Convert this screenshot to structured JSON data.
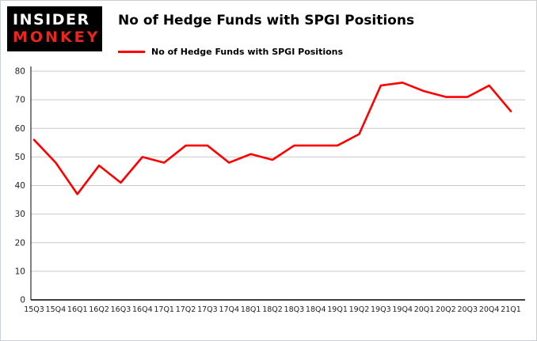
{
  "logo": {
    "line1": "INSIDER",
    "line2": "MONKEY",
    "bg_color": "#000000",
    "insider_color": "#ffffff",
    "monkey_color": "#e8251f"
  },
  "title": "No of Hedge Funds with SPGI Positions",
  "legend": {
    "label": "No of Hedge Funds with SPGI Positions",
    "color": "#ff0000"
  },
  "chart_data": {
    "type": "line",
    "title": "No of Hedge Funds with SPGI Positions",
    "categories": [
      "15Q3",
      "15Q4",
      "16Q1",
      "16Q2",
      "16Q3",
      "16Q4",
      "17Q1",
      "17Q2",
      "17Q3",
      "17Q4",
      "18Q1",
      "18Q2",
      "18Q3",
      "18Q4",
      "19Q1",
      "19Q2",
      "19Q3",
      "19Q4",
      "20Q1",
      "20Q2",
      "20Q3",
      "20Q4",
      "21Q1"
    ],
    "values": [
      56,
      48,
      37,
      47,
      41,
      50,
      48,
      54,
      54,
      48,
      51,
      49,
      54,
      54,
      54,
      58,
      75,
      76,
      73,
      71,
      71,
      75,
      66
    ],
    "xlabel": "",
    "ylabel": "",
    "ylim": [
      0,
      80
    ],
    "yticks": [
      0,
      10,
      20,
      30,
      40,
      50,
      60,
      70,
      80
    ],
    "line_color": "#ff0000",
    "grid_color": "#c9c9c9",
    "axis_color": "#000000",
    "tick_label_color": "#222222",
    "grid": true,
    "legend_position": "top-left"
  }
}
